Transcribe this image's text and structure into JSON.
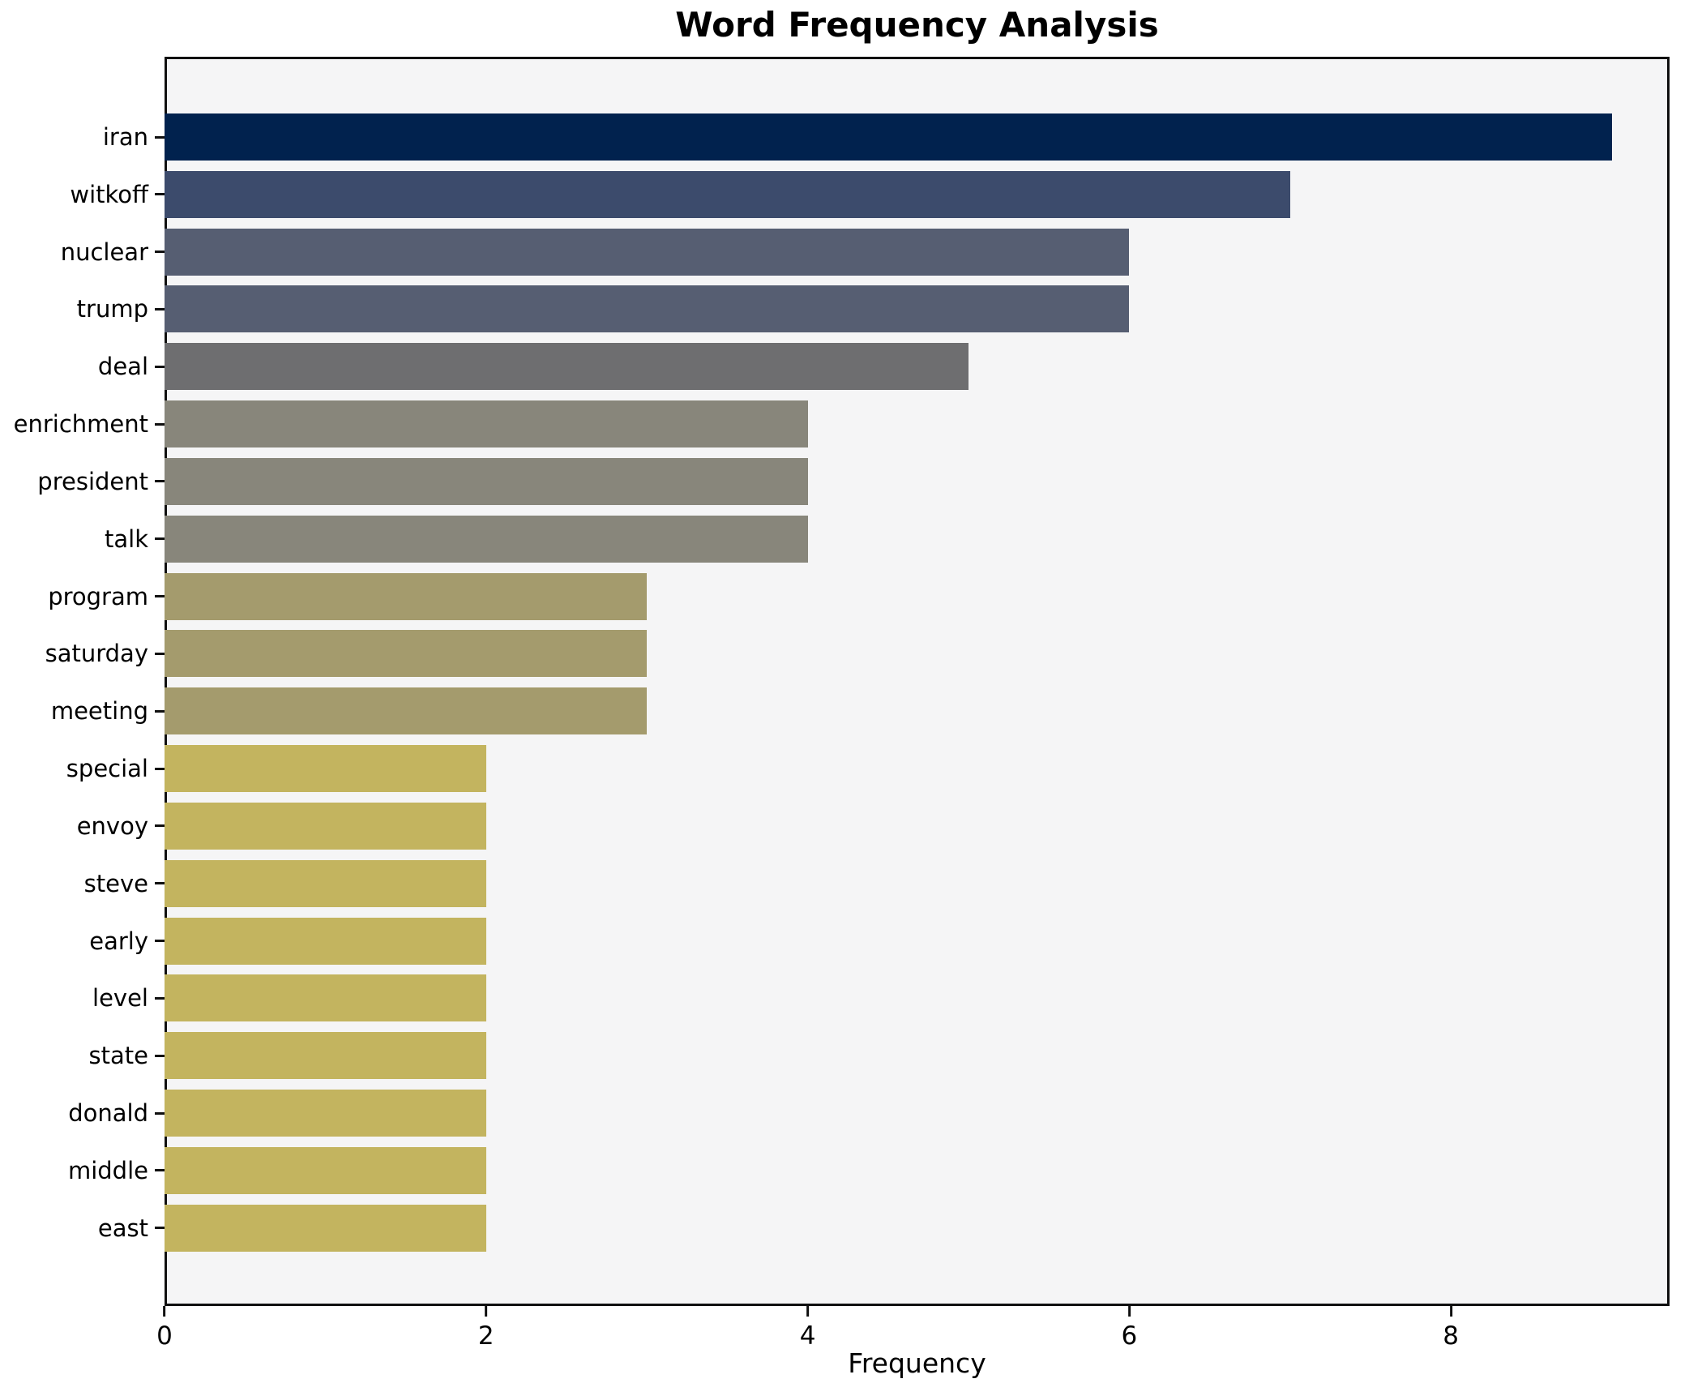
{
  "title": "Word Frequency Analysis",
  "xlabel": "Frequency",
  "colors": {
    "figure_bg": "#ffffff",
    "plot_bg": "#f5f5f6",
    "spine": "#101010",
    "text": "#000000"
  },
  "chart_data": {
    "type": "bar",
    "orientation": "horizontal",
    "title": "Word Frequency Analysis",
    "xlabel": "Frequency",
    "ylabel": "",
    "categories": [
      "iran",
      "witkoff",
      "nuclear",
      "trump",
      "deal",
      "enrichment",
      "president",
      "talk",
      "program",
      "saturday",
      "meeting",
      "special",
      "envoy",
      "steve",
      "early",
      "level",
      "state",
      "donald",
      "middle",
      "east"
    ],
    "values": [
      9,
      7,
      6,
      6,
      5,
      4,
      4,
      4,
      3,
      3,
      3,
      2,
      2,
      2,
      2,
      2,
      2,
      2,
      2,
      2
    ],
    "bar_colors": [
      "#01224e",
      "#3c4b6c",
      "#565e72",
      "#565e72",
      "#6e6e70",
      "#88867b",
      "#88867b",
      "#88867b",
      "#a49b6d",
      "#a49b6d",
      "#a49b6d",
      "#c3b45f",
      "#c3b45f",
      "#c3b45f",
      "#c3b45f",
      "#c3b45f",
      "#c3b45f",
      "#c3b45f",
      "#c3b45f",
      "#c3b45f"
    ],
    "colormap": "cividis (darker = higher frequency)",
    "xlim": [
      0,
      9.36
    ],
    "x_tick_values": [
      0,
      2,
      4,
      6,
      8
    ],
    "x_tick_labels": [
      "0",
      "2",
      "4",
      "6",
      "8"
    ],
    "grid": false,
    "legend": null,
    "bar_height_fraction": 0.82
  }
}
